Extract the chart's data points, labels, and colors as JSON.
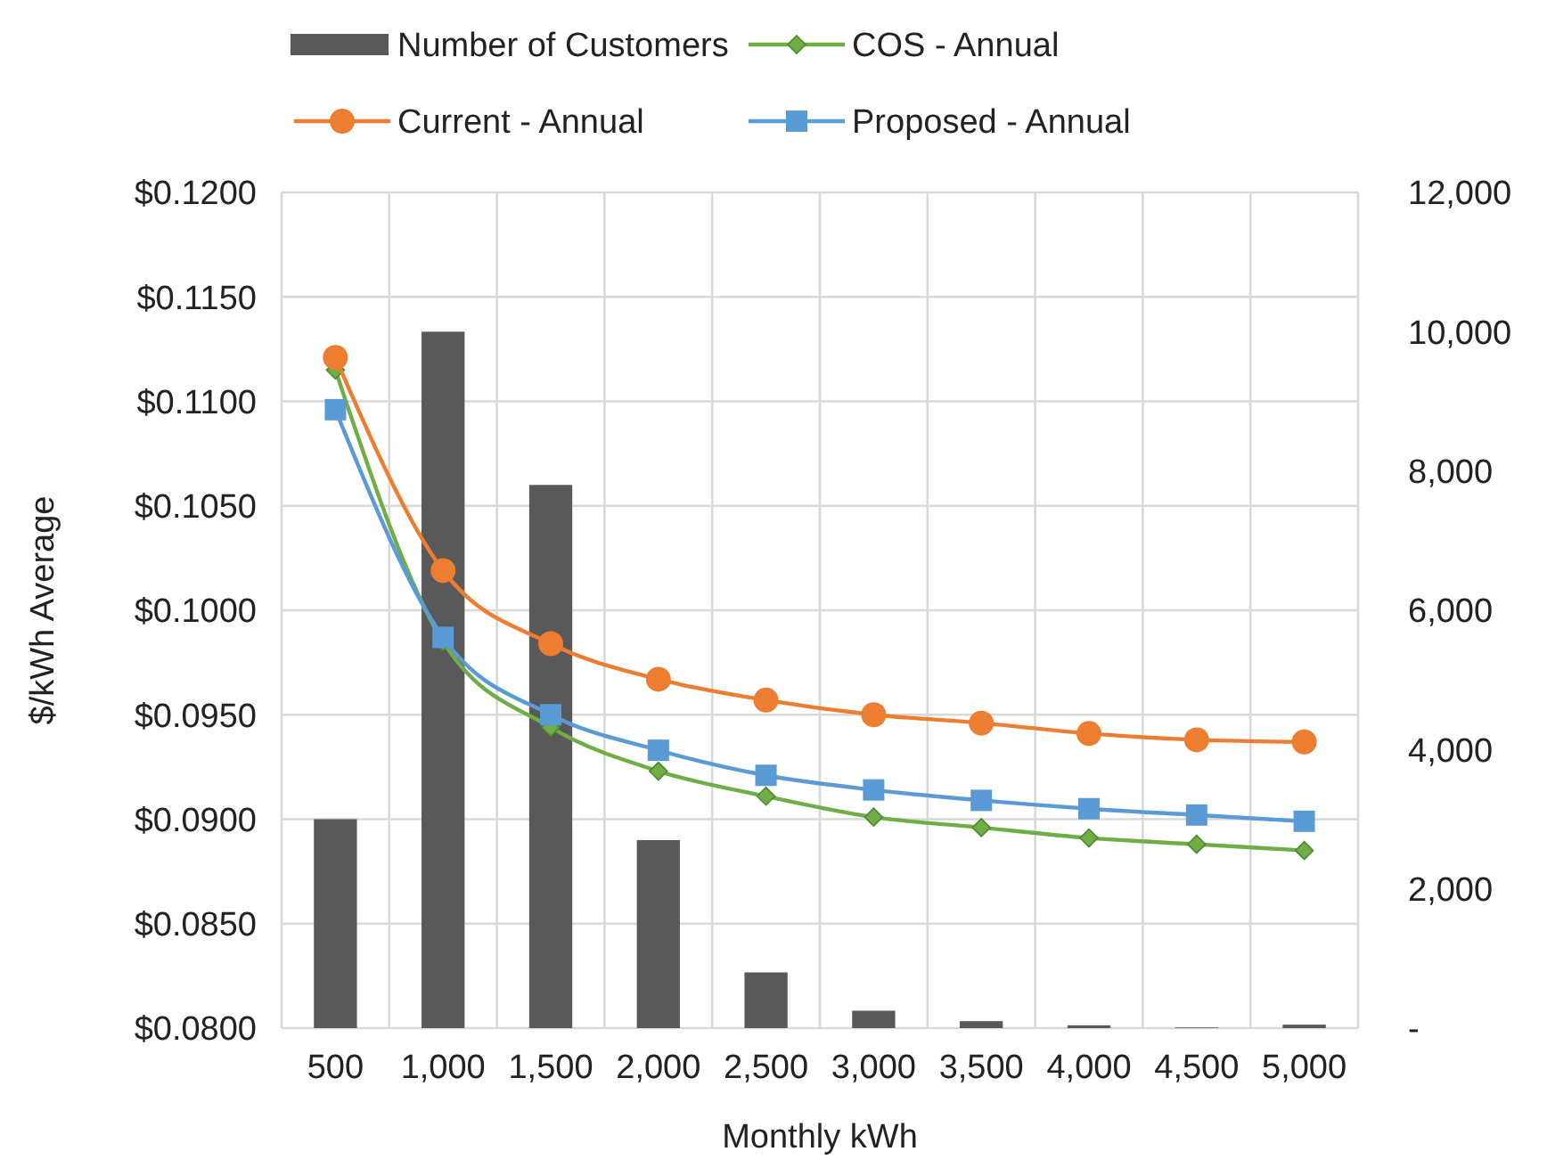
{
  "chart_data": {
    "type": "bar",
    "xlabel": "Monthly kWh",
    "ylabel": "$/kWh Average",
    "categories": [
      "500",
      "1,000",
      "1,500",
      "2,000",
      "2,500",
      "3,000",
      "3,500",
      "4,000",
      "4,500",
      "5,000"
    ],
    "ylim": [
      0.08,
      0.12
    ],
    "yticks": [
      {
        "value": 0.08,
        "label": "$0.0800"
      },
      {
        "value": 0.085,
        "label": "$0.0850"
      },
      {
        "value": 0.09,
        "label": "$0.0900"
      },
      {
        "value": 0.095,
        "label": "$0.0950"
      },
      {
        "value": 0.1,
        "label": "$0.1000"
      },
      {
        "value": 0.105,
        "label": "$0.1050"
      },
      {
        "value": 0.11,
        "label": "$0.1100"
      },
      {
        "value": 0.115,
        "label": "$0.1150"
      },
      {
        "value": 0.12,
        "label": "$0.1200"
      }
    ],
    "y2lim": [
      0,
      12000
    ],
    "y2ticks": [
      {
        "value": 0,
        "label": "-"
      },
      {
        "value": 2000,
        "label": "2,000"
      },
      {
        "value": 4000,
        "label": "4,000"
      },
      {
        "value": 6000,
        "label": "6,000"
      },
      {
        "value": 8000,
        "label": "8,000"
      },
      {
        "value": 10000,
        "label": "10,000"
      },
      {
        "value": 12000,
        "label": "12,000"
      }
    ],
    "grid": true,
    "legend": "top",
    "series": [
      {
        "name": "Number of Customers",
        "axis": "y2",
        "color": "#595959",
        "values": [
          3000,
          10000,
          7800,
          2700,
          800,
          250,
          100,
          40,
          10,
          50
        ]
      },
      {
        "name": "COS - Annual",
        "type": "line",
        "marker": "diamond",
        "color": "#70ad47",
        "values": [
          0.1115,
          0.0985,
          0.0944,
          0.0923,
          0.0911,
          0.0901,
          0.0896,
          0.0891,
          0.0888,
          0.0885
        ]
      },
      {
        "name": "Current - Annual",
        "type": "line",
        "marker": "circle",
        "color": "#ed7d31",
        "values": [
          0.1121,
          0.1019,
          0.0984,
          0.0967,
          0.0957,
          0.095,
          0.0946,
          0.0941,
          0.0938,
          0.0937
        ]
      },
      {
        "name": "Proposed - Annual",
        "type": "line",
        "marker": "square",
        "color": "#5b9bd5",
        "values": [
          0.1096,
          0.0987,
          0.095,
          0.0933,
          0.0921,
          0.0914,
          0.0909,
          0.0905,
          0.0902,
          0.0899
        ]
      }
    ]
  }
}
